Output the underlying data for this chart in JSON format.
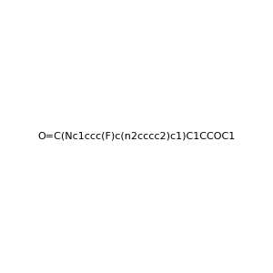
{
  "smiles": "O=C(Nc1ccc(F)c(n2cccc2)c1)C1CCOC1",
  "title": "",
  "img_size": [
    300,
    300
  ],
  "background_color": "#f0f0f0"
}
